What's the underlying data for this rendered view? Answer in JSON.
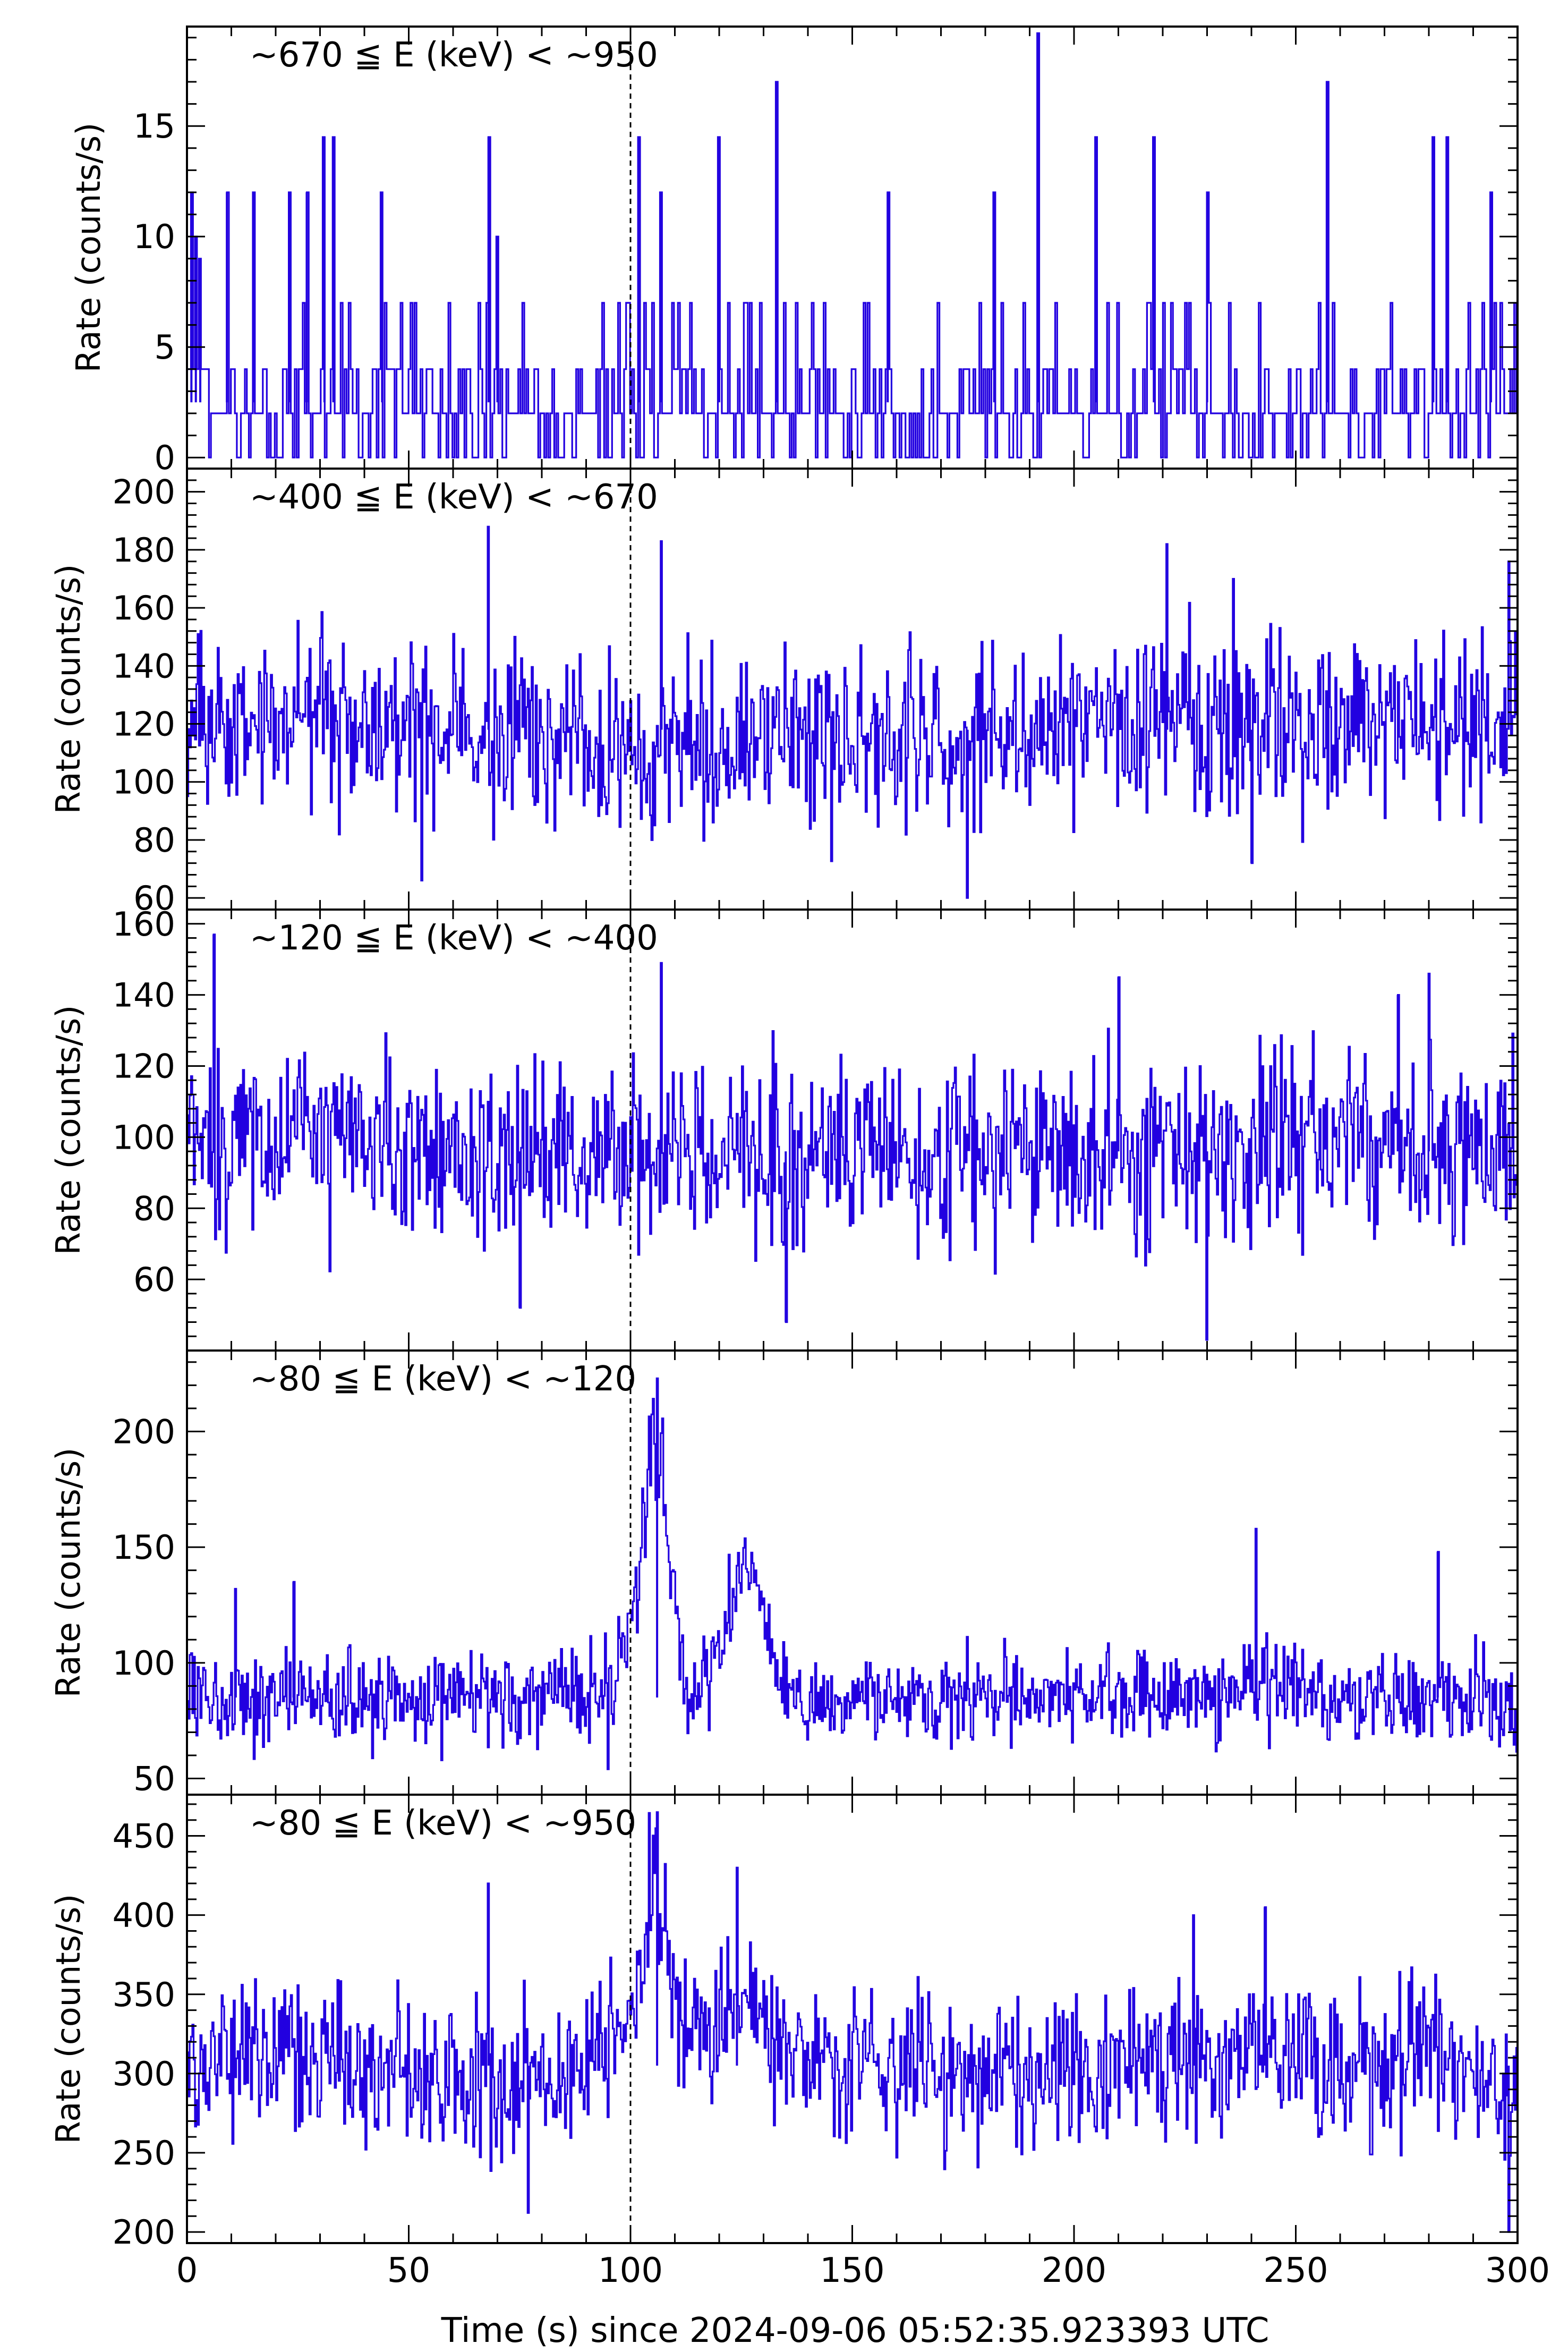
{
  "figure": {
    "xlabel": "Time (s) since 2024-09-06 05:52:35.923393 UTC",
    "xlim": [
      0,
      300
    ],
    "xticks": [
      0,
      50,
      100,
      150,
      200,
      250,
      300
    ],
    "trigger_time": 100,
    "colors": {
      "series": "#2200e0",
      "axes": "#000000",
      "background": "#ffffff"
    }
  },
  "chart_data": [
    {
      "type": "line",
      "title": "~670 ≦ E (keV) < ~950",
      "ylabel": "Rate (counts/s)",
      "ylim": [
        -0.5,
        19.5
      ],
      "yticks": [
        0,
        5,
        10,
        15
      ],
      "mean": 2.5,
      "noise": 3.8,
      "x": [
        0,
        50,
        100,
        150,
        200,
        250,
        300
      ],
      "values": [
        2,
        3,
        2,
        3,
        2,
        3,
        2
      ],
      "spikes": [
        {
          "x": 1,
          "y": 12
        },
        {
          "x": 2,
          "y": 10
        },
        {
          "x": 3,
          "y": 9
        },
        {
          "x": 9,
          "y": 12
        },
        {
          "x": 15,
          "y": 12
        },
        {
          "x": 23,
          "y": 12
        },
        {
          "x": 27,
          "y": 12
        },
        {
          "x": 31,
          "y": 14.5
        },
        {
          "x": 33,
          "y": 14.5
        },
        {
          "x": 44,
          "y": 12
        },
        {
          "x": 68,
          "y": 14.5
        },
        {
          "x": 70,
          "y": 10
        },
        {
          "x": 102,
          "y": 14.5
        },
        {
          "x": 107,
          "y": 12
        },
        {
          "x": 120,
          "y": 14.5
        },
        {
          "x": 133,
          "y": 17
        },
        {
          "x": 158,
          "y": 12
        },
        {
          "x": 182,
          "y": 12
        },
        {
          "x": 192,
          "y": 19.2
        },
        {
          "x": 205,
          "y": 14.5
        },
        {
          "x": 218,
          "y": 14.5
        },
        {
          "x": 230,
          "y": 12
        },
        {
          "x": 257,
          "y": 17
        },
        {
          "x": 281,
          "y": 14.5
        },
        {
          "x": 284,
          "y": 14.5
        },
        {
          "x": 294,
          "y": 12
        }
      ],
      "seed": 11
    },
    {
      "type": "line",
      "title": "~400 ≦ E (keV) < ~670",
      "ylabel": "Rate (counts/s)",
      "ylim": [
        56,
        208
      ],
      "yticks": [
        60,
        80,
        100,
        120,
        140,
        160,
        180,
        200
      ],
      "mean": 118,
      "noise": 15,
      "x": [
        0,
        25,
        50,
        75,
        100,
        125,
        150,
        175,
        200,
        225,
        250,
        275,
        300
      ],
      "values": [
        118,
        125,
        118,
        115,
        112,
        118,
        116,
        114,
        120,
        122,
        118,
        120,
        116
      ],
      "spikes": [
        {
          "x": 68,
          "y": 188
        },
        {
          "x": 107,
          "y": 183
        },
        {
          "x": 221,
          "y": 182
        },
        {
          "x": 236,
          "y": 170
        },
        {
          "x": 298,
          "y": 176
        },
        {
          "x": 176,
          "y": 60
        },
        {
          "x": 53,
          "y": 66
        },
        {
          "x": 240,
          "y": 72
        }
      ],
      "seed": 23
    },
    {
      "type": "line",
      "title": "~120 ≦ E (keV) < ~400",
      "ylabel": "Rate (counts/s)",
      "ylim": [
        40,
        164
      ],
      "yticks": [
        60,
        80,
        100,
        120,
        140,
        160
      ],
      "mean": 96,
      "noise": 13,
      "x": [
        0,
        25,
        50,
        75,
        100,
        125,
        150,
        175,
        200,
        225,
        250,
        275,
        300
      ],
      "values": [
        100,
        100,
        96,
        95,
        94,
        98,
        97,
        95,
        96,
        95,
        98,
        98,
        95
      ],
      "spikes": [
        {
          "x": 6,
          "y": 157
        },
        {
          "x": 107,
          "y": 149
        },
        {
          "x": 210,
          "y": 145
        },
        {
          "x": 280,
          "y": 146
        },
        {
          "x": 273,
          "y": 140
        },
        {
          "x": 230,
          "y": 43
        },
        {
          "x": 135,
          "y": 48
        },
        {
          "x": 75,
          "y": 52
        }
      ],
      "seed": 37
    },
    {
      "type": "line",
      "title": "~80 ≦ E (keV) < ~120",
      "ylabel": "Rate (counts/s)",
      "ylim": [
        43,
        235
      ],
      "yticks": [
        50,
        100,
        150,
        200
      ],
      "mean": 85,
      "noise": 10,
      "x": [
        0,
        20,
        40,
        60,
        80,
        90,
        95,
        100,
        103,
        105,
        107,
        110,
        113,
        116,
        120,
        124,
        127,
        130,
        133,
        136,
        140,
        160,
        180,
        200,
        220,
        240,
        260,
        280,
        300
      ],
      "values": [
        85,
        86,
        84,
        85,
        84,
        86,
        90,
        115,
        160,
        200,
        185,
        120,
        85,
        85,
        110,
        135,
        145,
        125,
        95,
        87,
        84,
        84,
        85,
        87,
        84,
        85,
        84,
        85,
        80
      ],
      "spikes": [
        {
          "x": 106,
          "y": 223
        },
        {
          "x": 241,
          "y": 158
        },
        {
          "x": 282,
          "y": 148
        },
        {
          "x": 24,
          "y": 135
        },
        {
          "x": 11,
          "y": 132
        },
        {
          "x": 95,
          "y": 54
        }
      ],
      "seed": 53
    },
    {
      "type": "line",
      "title": "~80 ≦ E (keV) < ~950",
      "ylabel": "Rate (counts/s)",
      "ylim": [
        193,
        476
      ],
      "yticks": [
        200,
        250,
        300,
        350,
        400,
        450
      ],
      "mean": 305,
      "noise": 24,
      "x": [
        0,
        20,
        40,
        60,
        80,
        90,
        95,
        100,
        103,
        105,
        107,
        110,
        113,
        116,
        120,
        124,
        127,
        130,
        135,
        140,
        160,
        180,
        200,
        220,
        240,
        260,
        280,
        300
      ],
      "values": [
        305,
        310,
        305,
        300,
        300,
        310,
        315,
        330,
        380,
        420,
        410,
        350,
        330,
        325,
        330,
        340,
        345,
        330,
        315,
        310,
        305,
        300,
        300,
        305,
        315,
        305,
        310,
        290
      ],
      "spikes": [
        {
          "x": 106,
          "y": 465
        },
        {
          "x": 124,
          "y": 430
        },
        {
          "x": 68,
          "y": 420
        },
        {
          "x": 243,
          "y": 405
        },
        {
          "x": 227,
          "y": 400
        },
        {
          "x": 298,
          "y": 200
        },
        {
          "x": 77,
          "y": 212
        }
      ],
      "seed": 71
    }
  ]
}
